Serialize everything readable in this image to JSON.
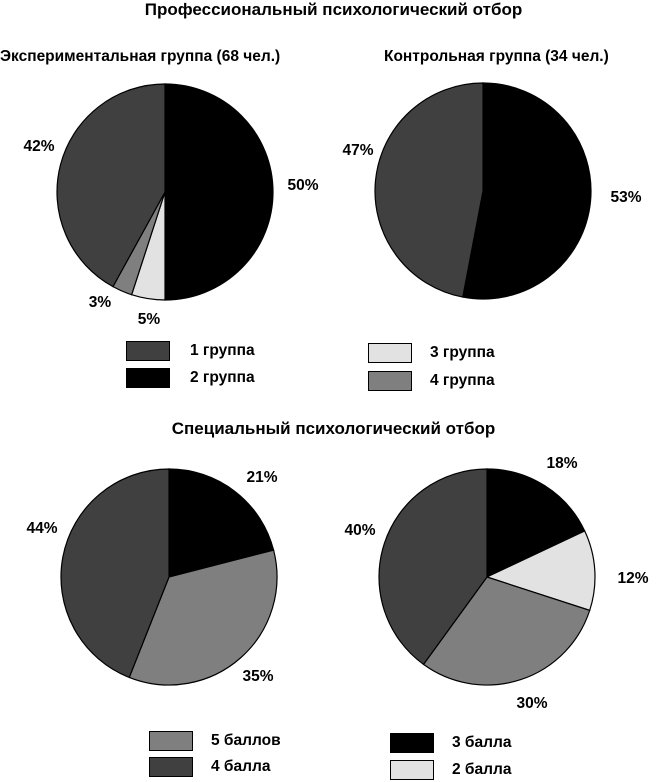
{
  "colors": {
    "1 группа": "#404040",
    "2 группа": "#000000",
    "3 группа": "#e2e2e2",
    "4 группа": "#7f7f7f",
    "5 баллов": "#7f7f7f",
    "4 балла": "#404040",
    "3 балла": "#000000",
    "2 балла": "#e2e2e2"
  },
  "sections": [
    {
      "title": "Профессиональный психологический отбор",
      "legend": [
        {
          "label": "1 группа",
          "color": "#404040"
        },
        {
          "label": "2 группа",
          "color": "#000000"
        },
        {
          "label": "3 группа",
          "color": "#e2e2e2"
        },
        {
          "label": "4 группа",
          "color": "#7f7f7f"
        }
      ]
    },
    {
      "title": "Специальный психологический отбор",
      "legend": [
        {
          "label": "5 баллов",
          "color": "#7f7f7f"
        },
        {
          "label": "4 балла",
          "color": "#404040"
        },
        {
          "label": "3 балла",
          "color": "#000000"
        },
        {
          "label": "2 балла",
          "color": "#e2e2e2"
        }
      ]
    }
  ],
  "chart_data": [
    {
      "type": "pie",
      "title": "Экспериментальная группа (68 чел.)",
      "slices": [
        {
          "label": "2 группа",
          "value": 50,
          "display": "50%"
        },
        {
          "label": "3 группа",
          "value": 5,
          "display": "5%"
        },
        {
          "label": "4 группа",
          "value": 3,
          "display": "3%"
        },
        {
          "label": "1 группа",
          "value": 42,
          "display": "42%"
        }
      ]
    },
    {
      "type": "pie",
      "title": "Контрольная группа (34 чел.)",
      "slices": [
        {
          "label": "2 группа",
          "value": 53,
          "display": "53%"
        },
        {
          "label": "1 группа",
          "value": 47,
          "display": "47%"
        }
      ]
    },
    {
      "type": "pie",
      "title": "",
      "slices": [
        {
          "label": "3 балла",
          "value": 21,
          "display": "21%"
        },
        {
          "label": "5 баллов",
          "value": 35,
          "display": "35%"
        },
        {
          "label": "4 балла",
          "value": 44,
          "display": "44%"
        }
      ]
    },
    {
      "type": "pie",
      "title": "",
      "slices": [
        {
          "label": "3 балла",
          "value": 18,
          "display": "18%"
        },
        {
          "label": "2 балла",
          "value": 12,
          "display": "12%"
        },
        {
          "label": "5 баллов",
          "value": 30,
          "display": "30%"
        },
        {
          "label": "4 балла",
          "value": 40,
          "display": "40%"
        }
      ]
    }
  ]
}
